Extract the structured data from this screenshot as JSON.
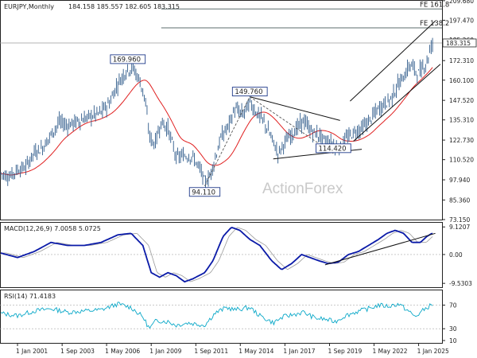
{
  "chart_data": [
    {
      "type": "candlestick",
      "panel": "price",
      "header": {
        "symbol": "EURJPY,Monthly",
        "ohlc": "184.158 185.557 182.605 183.315"
      },
      "watermark": "ActionForex",
      "ylim": [
        73.15,
        209.6
      ],
      "yticks": [
        "209.680",
        "197.470",
        "185.260",
        "172.310",
        "160.100",
        "147.520",
        "135.310",
        "122.730",
        "110.520",
        "97.940",
        "85.360",
        "73.150"
      ],
      "ytick_values": [
        209.68,
        197.47,
        185.26,
        172.31,
        160.1,
        147.52,
        135.31,
        122.73,
        110.52,
        97.94,
        85.36,
        73.15
      ],
      "current_price": {
        "label": "183.315",
        "value": 183.315
      },
      "fib_lines": [
        {
          "label": "FE 161.8",
          "value": 204.5
        },
        {
          "label": "FE 138.2",
          "value": 192.7
        }
      ],
      "annotations": [
        {
          "label": "169.960",
          "x": 2007.6,
          "y": 169.96
        },
        {
          "label": "149.760",
          "x": 2014.9,
          "y": 149.76
        },
        {
          "label": "94.110",
          "x": 2012.2,
          "y": 94.11
        },
        {
          "label": "114.420",
          "x": 2019.9,
          "y": 114.42
        }
      ],
      "series": [
        {
          "values_xy": [
            [
              2000.0,
              102
            ],
            [
              2000.5,
              100
            ],
            [
              2001.0,
              104
            ],
            [
              2001.5,
              106
            ],
            [
              2002.0,
              115
            ],
            [
              2002.5,
              118
            ],
            [
              2003.0,
              126
            ],
            [
              2003.5,
              134
            ],
            [
              2004.0,
              132
            ],
            [
              2004.5,
              134
            ],
            [
              2005.0,
              136
            ],
            [
              2005.5,
              138
            ],
            [
              2006.0,
              140
            ],
            [
              2006.5,
              146
            ],
            [
              2007.0,
              158
            ],
            [
              2007.5,
              166
            ],
            [
              2007.9,
              168
            ],
            [
              2008.3,
              160
            ],
            [
              2008.6,
              150
            ],
            [
              2008.9,
              125
            ],
            [
              2009.2,
              120
            ],
            [
              2009.6,
              134
            ],
            [
              2010.0,
              130
            ],
            [
              2010.5,
              112
            ],
            [
              2011.0,
              113
            ],
            [
              2011.5,
              112
            ],
            [
              2012.0,
              103
            ],
            [
              2012.2,
              96
            ],
            [
              2012.5,
              100
            ],
            [
              2012.9,
              114
            ],
            [
              2013.2,
              125
            ],
            [
              2013.6,
              131
            ],
            [
              2014.0,
              142
            ],
            [
              2014.5,
              139
            ],
            [
              2014.9,
              146
            ],
            [
              2015.3,
              140
            ],
            [
              2015.7,
              135
            ],
            [
              2016.2,
              124
            ],
            [
              2016.6,
              114
            ],
            [
              2016.9,
              120
            ],
            [
              2017.3,
              125
            ],
            [
              2017.8,
              131
            ],
            [
              2018.1,
              135
            ],
            [
              2018.6,
              128
            ],
            [
              2019.0,
              126
            ],
            [
              2019.4,
              122
            ],
            [
              2019.9,
              120
            ],
            [
              2020.3,
              118
            ],
            [
              2020.7,
              124
            ],
            [
              2021.2,
              128
            ],
            [
              2021.6,
              130
            ],
            [
              2022.0,
              134
            ],
            [
              2022.5,
              141
            ],
            [
              2022.9,
              145
            ],
            [
              2023.3,
              148
            ],
            [
              2023.7,
              156
            ],
            [
              2024.1,
              162
            ],
            [
              2024.5,
              170
            ],
            [
              2025.0,
              164
            ],
            [
              2025.5,
              172
            ],
            [
              2025.8,
              183
            ]
          ]
        }
      ],
      "trendlines": [
        {
          "from": [
            2014.9,
            149.76
          ],
          "to": [
            2020.3,
            135
          ]
        },
        {
          "from": [
            2016.3,
            111
          ],
          "to": [
            2021.6,
            117
          ]
        },
        {
          "from": [
            2020.9,
            147
          ],
          "to": [
            2026.0,
            197
          ]
        },
        {
          "from": [
            2021.1,
            122
          ],
          "to": [
            2026.3,
            170
          ]
        }
      ],
      "dashed_lines": [
        {
          "from": [
            2012.2,
            94.11
          ],
          "to": [
            2014.9,
            149.76
          ]
        },
        {
          "from": [
            2014.9,
            149.76
          ],
          "to": [
            2019.9,
            114.42
          ]
        }
      ],
      "moving_average": {
        "color": "#e02020"
      },
      "price_color": "#2e5a8a"
    },
    {
      "type": "line",
      "panel": "macd",
      "header": "MACD(12,26,9) 7.0058 5.0725",
      "ylim": [
        -10.8,
        10.5
      ],
      "yticks": [
        "9.1207",
        "0.00",
        "-9.5303"
      ],
      "ytick_values": [
        9.1207,
        0,
        -9.5303
      ],
      "series": [
        {
          "values_xy": [
            [
              2000.0,
              0.5
            ],
            [
              2001.0,
              -1
            ],
            [
              2002.0,
              1
            ],
            [
              2003.0,
              4
            ],
            [
              2004.0,
              3
            ],
            [
              2005.0,
              3
            ],
            [
              2006.0,
              4
            ],
            [
              2007.0,
              6.5
            ],
            [
              2007.8,
              7
            ],
            [
              2008.5,
              3
            ],
            [
              2009.0,
              -6
            ],
            [
              2009.5,
              -7.5
            ],
            [
              2010.0,
              -6
            ],
            [
              2010.5,
              -7
            ],
            [
              2011.0,
              -9
            ],
            [
              2011.5,
              -8
            ],
            [
              2012.2,
              -6
            ],
            [
              2012.7,
              -2
            ],
            [
              2013.3,
              6
            ],
            [
              2013.8,
              9
            ],
            [
              2014.3,
              8
            ],
            [
              2014.9,
              5
            ],
            [
              2015.5,
              3
            ],
            [
              2016.2,
              -2
            ],
            [
              2016.8,
              -5
            ],
            [
              2017.4,
              -3
            ],
            [
              2018.0,
              0
            ],
            [
              2018.5,
              -1
            ],
            [
              2019.0,
              -2
            ],
            [
              2019.6,
              -3
            ],
            [
              2020.2,
              -2.5
            ],
            [
              2020.8,
              0
            ],
            [
              2021.4,
              1
            ],
            [
              2022.0,
              3
            ],
            [
              2022.6,
              5
            ],
            [
              2023.1,
              7
            ],
            [
              2023.6,
              8
            ],
            [
              2024.1,
              7
            ],
            [
              2024.6,
              4
            ],
            [
              2025.1,
              4
            ],
            [
              2025.5,
              6
            ],
            [
              2025.8,
              7
            ]
          ]
        }
      ],
      "trendlines": [
        {
          "from": [
            2019.4,
            -3.4
          ],
          "to": [
            2026.0,
            7
          ]
        }
      ],
      "macd_color": "#0a1aa8",
      "signal_color": "#9a9a9a"
    },
    {
      "type": "line",
      "panel": "rsi",
      "header": "RSI(14) 71.4183",
      "ylim": [
        6,
        95
      ],
      "yticks": [
        "70",
        "30",
        "10"
      ],
      "ytick_values": [
        70,
        30,
        10
      ],
      "series": [
        {
          "values_xy": [
            [
              2000.0,
              56
            ],
            [
              2001.0,
              52
            ],
            [
              2002.0,
              60
            ],
            [
              2003.0,
              64
            ],
            [
              2004.0,
              58
            ],
            [
              2005.0,
              60
            ],
            [
              2006.0,
              62
            ],
            [
              2007.0,
              72
            ],
            [
              2007.8,
              66
            ],
            [
              2008.5,
              50
            ],
            [
              2008.9,
              30
            ],
            [
              2009.3,
              44
            ],
            [
              2010.0,
              42
            ],
            [
              2010.5,
              36
            ],
            [
              2011.2,
              40
            ],
            [
              2012.2,
              36
            ],
            [
              2012.8,
              56
            ],
            [
              2013.5,
              66
            ],
            [
              2014.0,
              62
            ],
            [
              2014.9,
              66
            ],
            [
              2015.5,
              52
            ],
            [
              2016.3,
              40
            ],
            [
              2016.9,
              50
            ],
            [
              2017.5,
              54
            ],
            [
              2018.1,
              58
            ],
            [
              2018.8,
              48
            ],
            [
              2019.4,
              46
            ],
            [
              2020.0,
              42
            ],
            [
              2020.6,
              52
            ],
            [
              2021.2,
              58
            ],
            [
              2022.0,
              64
            ],
            [
              2022.6,
              70
            ],
            [
              2023.2,
              68
            ],
            [
              2023.8,
              72
            ],
            [
              2024.3,
              62
            ],
            [
              2024.8,
              50
            ],
            [
              2025.3,
              62
            ],
            [
              2025.8,
              71
            ]
          ]
        }
      ],
      "rsi_color": "#0aa8c8"
    }
  ],
  "x_axis": {
    "ticks": [
      "1 Jan 2001",
      "1 Sep 2003",
      "1 May 2006",
      "1 Jan 2009",
      "1 Sep 2011",
      "1 May 2014",
      "1 Jan 2017",
      "1 Sep 2019",
      "1 May 2022",
      "1 Jan 2025"
    ],
    "tick_values": [
      2001.0,
      2003.67,
      2006.33,
      2009.0,
      2011.67,
      2014.33,
      2017.0,
      2019.67,
      2022.33,
      2025.0
    ],
    "xlim": [
      2000.0,
      2026.4
    ]
  }
}
